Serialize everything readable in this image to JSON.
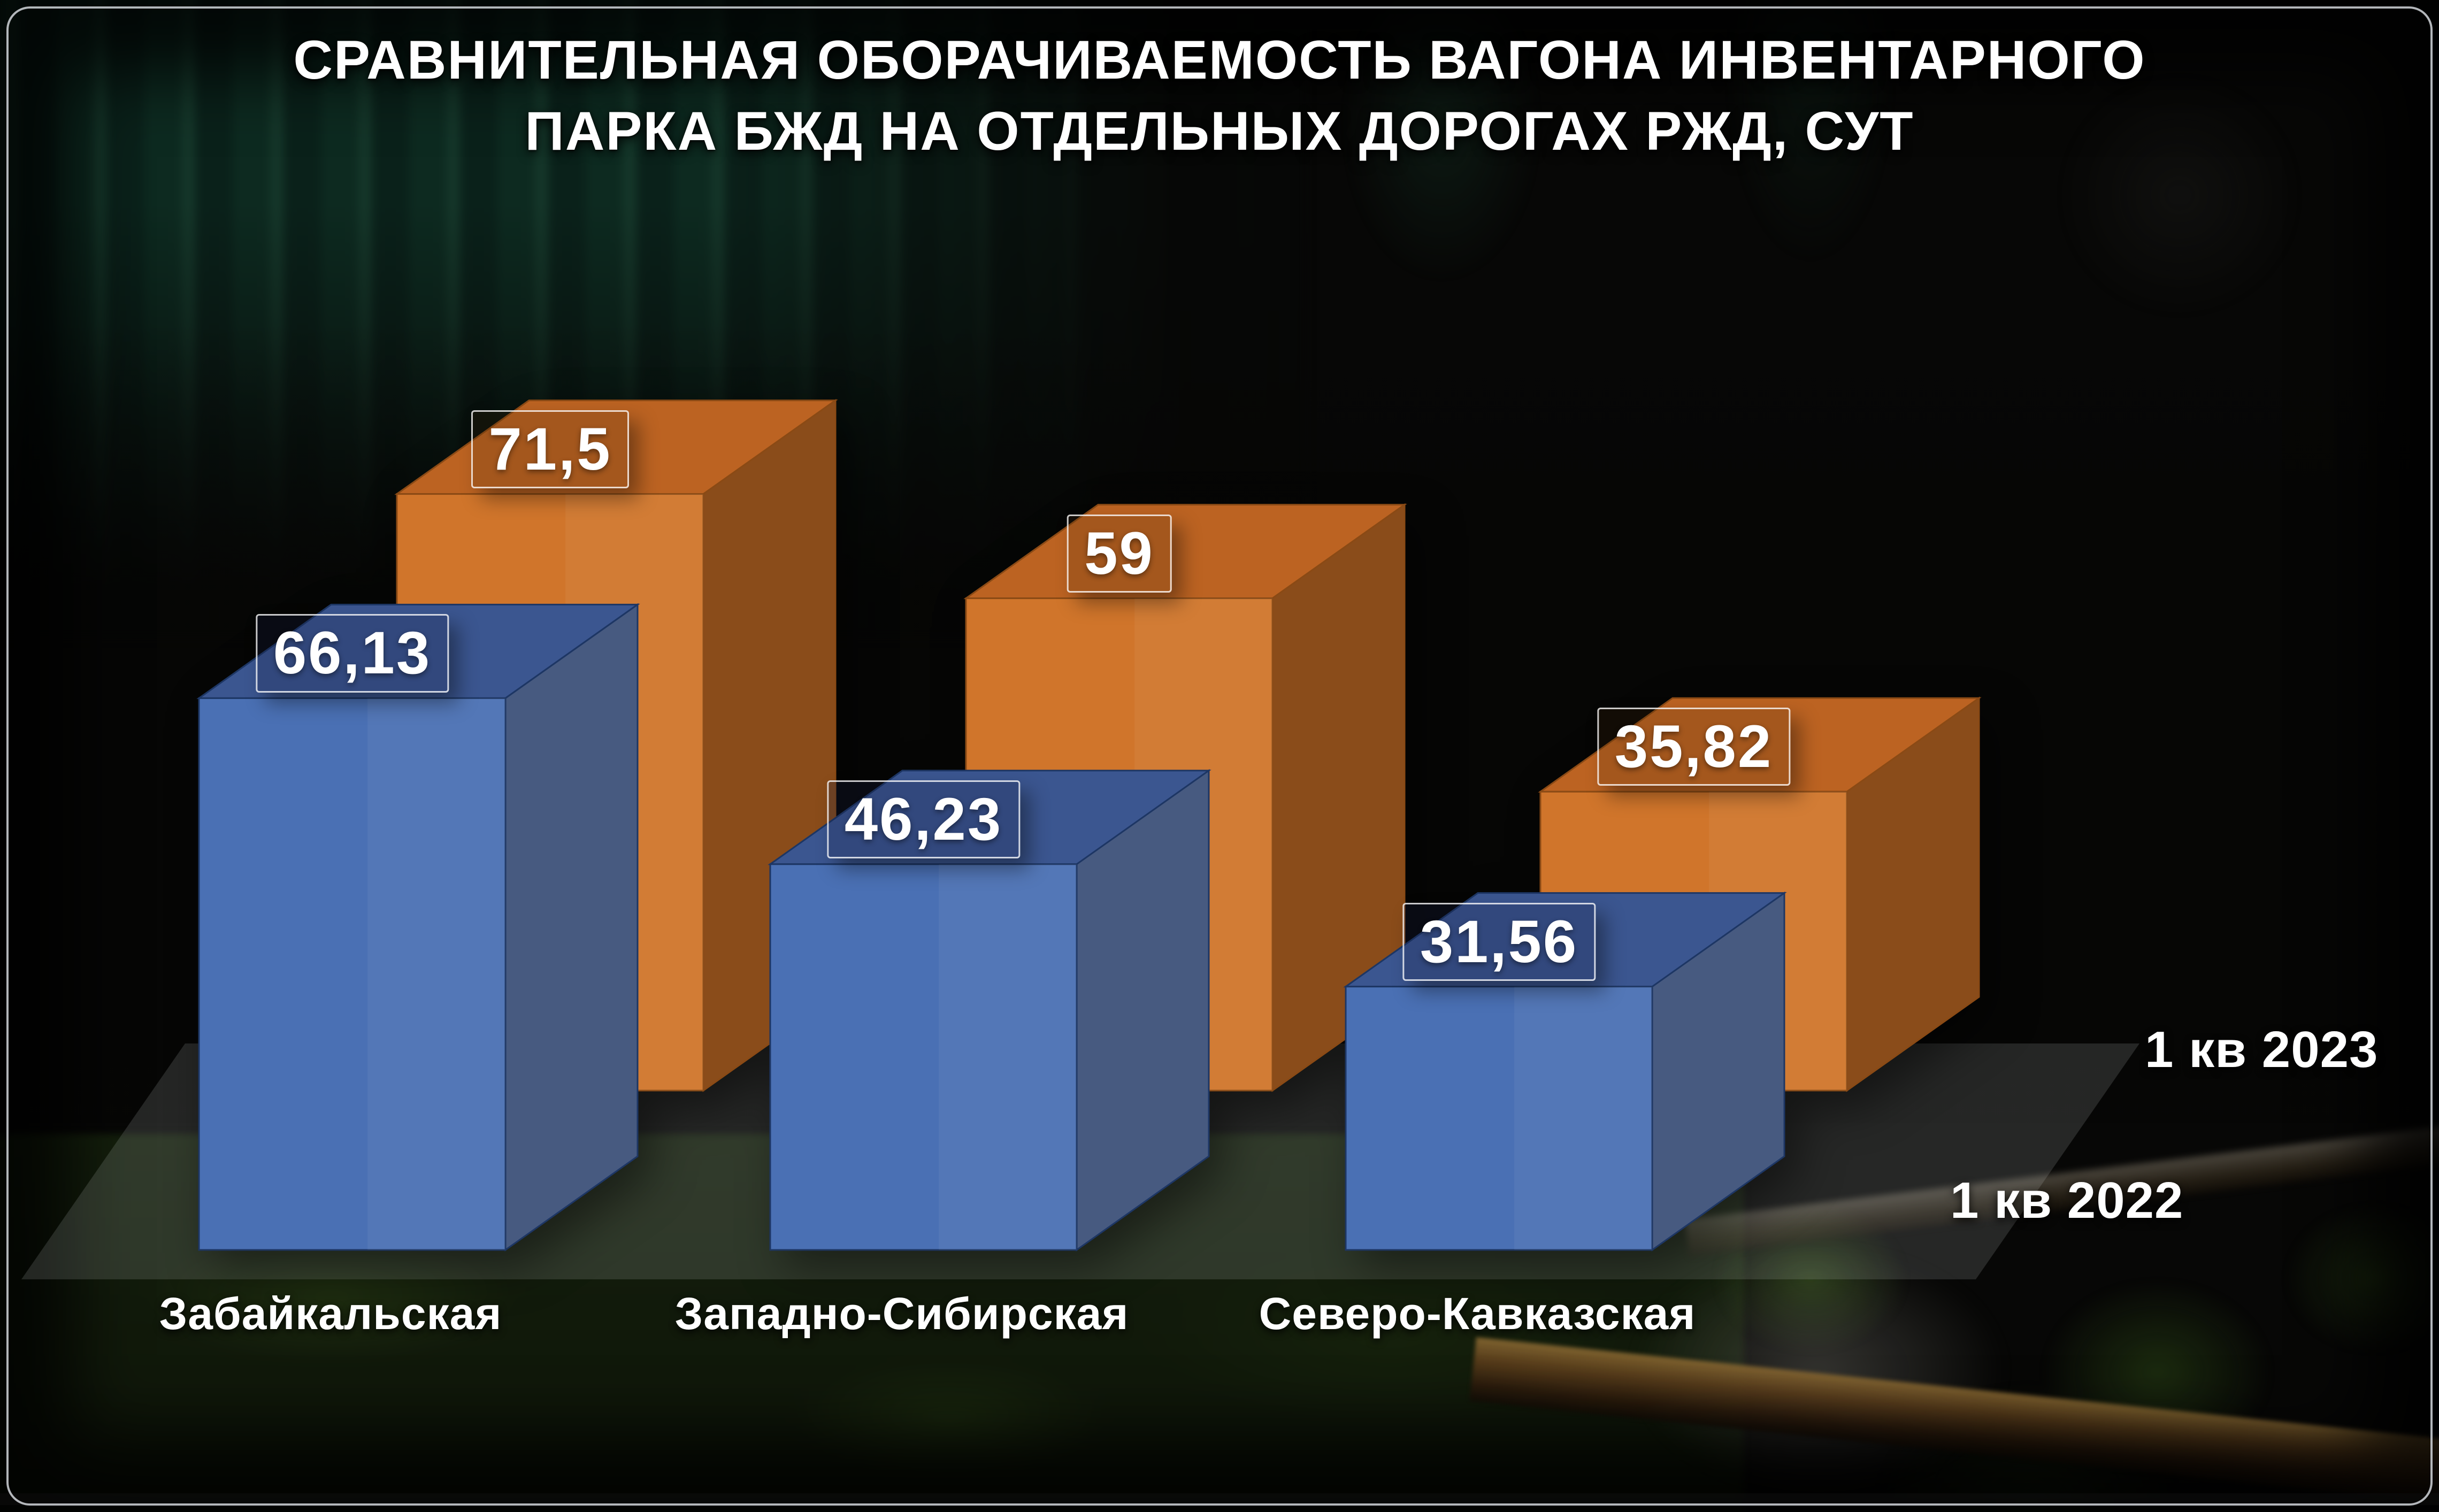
{
  "title": {
    "line1": "СРАВНИТЕЛЬНАЯ ОБОРАЧИВАЕМОСТЬ ВАГОНА ИНВЕНТАРНОГО",
    "line2": "ПАРКА БЖД НА ОТДЕЛЬНЫХ ДОРОГАХ РЖД, СУТ"
  },
  "legend": [
    {
      "label": "1 кв 2023"
    },
    {
      "label": "1 кв 2022"
    }
  ],
  "chart_data": {
    "type": "bar",
    "projection": "3d",
    "units": "сут",
    "categories": [
      "Забайкальская",
      "Западно-Сибирская",
      "Северо-Кавказская"
    ],
    "series": [
      {
        "name": "1 кв 2023",
        "color": "#d0752b",
        "values": [
          71.5,
          59,
          35.82
        ],
        "value_labels": [
          "71,5",
          "59",
          "35,82"
        ]
      },
      {
        "name": "1 кв 2022",
        "color": "#4a70b4",
        "values": [
          66.13,
          46.23,
          31.56
        ],
        "value_labels": [
          "66,13",
          "46,23",
          "31,56"
        ]
      }
    ],
    "ylim": [
      0,
      80
    ],
    "grid": false,
    "legend_position": "right-middle"
  },
  "colors": {
    "background": "#070706",
    "title_text": "#ffffff",
    "label_text": "#ffffff",
    "floor": "rgba(230,233,235,0.14)",
    "frame_border": "rgba(210,214,218,0.85)",
    "series_faces": [
      {
        "front": "#d0752b",
        "top": "#bc6322",
        "side": "#8a4c1a",
        "edge": "#8a4a15",
        "label_bg": "rgba(70,40,10,0.20)"
      },
      {
        "front": "#4a70b4",
        "top": "#3b5690",
        "side": "#475a80",
        "edge": "#1d3664",
        "label_bg": "rgba(22,32,66,0.25)"
      }
    ]
  }
}
